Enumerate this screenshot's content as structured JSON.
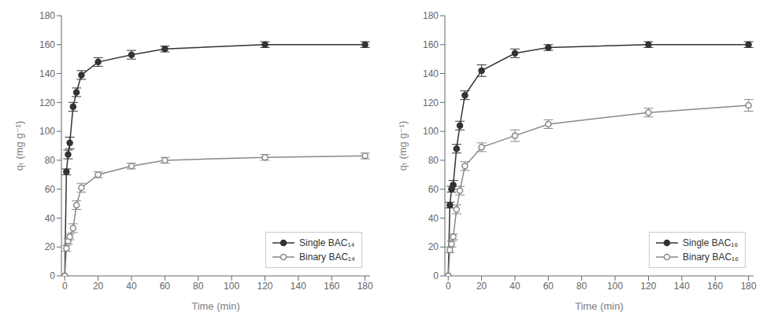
{
  "chart_data": [
    {
      "type": "line",
      "x": [
        0,
        1,
        2,
        3,
        5,
        7,
        10,
        20,
        40,
        60,
        120,
        180
      ],
      "series": [
        {
          "name": "Single BAC₁₄",
          "color": "#333333",
          "marker": "circle",
          "values": [
            0,
            72,
            84,
            92,
            117,
            127,
            139,
            148,
            153,
            157,
            160,
            160
          ],
          "errors": [
            0,
            2,
            3,
            4,
            3,
            3,
            3,
            3,
            3,
            2,
            2,
            2
          ]
        },
        {
          "name": "Binary BAC₁₄",
          "color": "#888888",
          "marker": "open_circle",
          "values": [
            0,
            19,
            24,
            27,
            33,
            49,
            61,
            70,
            76,
            80,
            82,
            83
          ],
          "errors": [
            0,
            2,
            2,
            2,
            3,
            3,
            3,
            2,
            2,
            2,
            2,
            2
          ]
        }
      ],
      "xlabel": "Time (min)",
      "ylabel": "qₜ (mg g⁻¹)",
      "xlim": [
        -2,
        183
      ],
      "ylim": [
        0,
        180
      ],
      "xticks": [
        0,
        20,
        40,
        60,
        80,
        100,
        120,
        140,
        160,
        180
      ],
      "yticks": [
        0,
        20,
        40,
        60,
        80,
        100,
        120,
        140,
        160,
        180
      ],
      "grid": false,
      "legend": "lower right"
    },
    {
      "type": "line",
      "x": [
        0,
        1,
        2,
        3,
        5,
        7,
        10,
        20,
        40,
        60,
        120,
        180
      ],
      "series": [
        {
          "name": "Single BAC₁₆",
          "color": "#333333",
          "marker": "circle",
          "values": [
            0,
            49,
            60,
            63,
            88,
            104,
            125,
            142,
            154,
            158,
            160,
            160
          ],
          "errors": [
            0,
            2,
            2,
            3,
            3,
            3,
            3,
            4,
            3,
            2,
            2,
            2
          ]
        },
        {
          "name": "Binary BAC₁₆",
          "color": "#888888",
          "marker": "open_circle",
          "values": [
            0,
            18,
            22,
            27,
            46,
            59,
            76,
            89,
            97,
            105,
            113,
            118
          ],
          "errors": [
            0,
            2,
            2,
            2,
            3,
            3,
            3,
            3,
            4,
            3,
            3,
            4
          ]
        }
      ],
      "xlabel": "Time (min)",
      "ylabel": "qₜ (mg g⁻¹)",
      "xlim": [
        -2,
        183
      ],
      "ylim": [
        0,
        180
      ],
      "xticks": [
        0,
        20,
        40,
        60,
        80,
        100,
        120,
        140,
        160,
        180
      ],
      "yticks": [
        0,
        20,
        40,
        60,
        80,
        100,
        120,
        140,
        160,
        180
      ],
      "grid": false,
      "legend": "lower right"
    }
  ]
}
